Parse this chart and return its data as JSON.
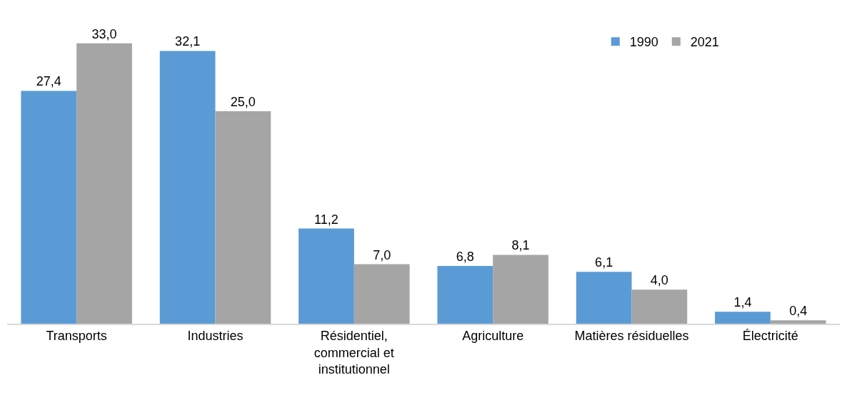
{
  "chart_data": {
    "type": "bar",
    "categories": [
      "Transports",
      "Industries",
      "Résidentiel, commercial et institutionnel",
      "Agriculture",
      "Matières résiduelles",
      "Électricité"
    ],
    "series": [
      {
        "name": "1990",
        "color": "#5b9bd5",
        "values": [
          27.4,
          32.1,
          11.2,
          6.8,
          6.1,
          1.4
        ],
        "value_labels": [
          "27,4",
          "32,1",
          "11,2",
          "6,8",
          "6,1",
          "1,4"
        ]
      },
      {
        "name": "2021",
        "color": "#a5a5a5",
        "values": [
          33.0,
          25.0,
          7.0,
          8.1,
          4.0,
          0.4
        ],
        "value_labels": [
          "33,0",
          "25,0",
          "7,0",
          "8,1",
          "4,0",
          "0,4"
        ]
      }
    ],
    "legend": "top right"
  }
}
